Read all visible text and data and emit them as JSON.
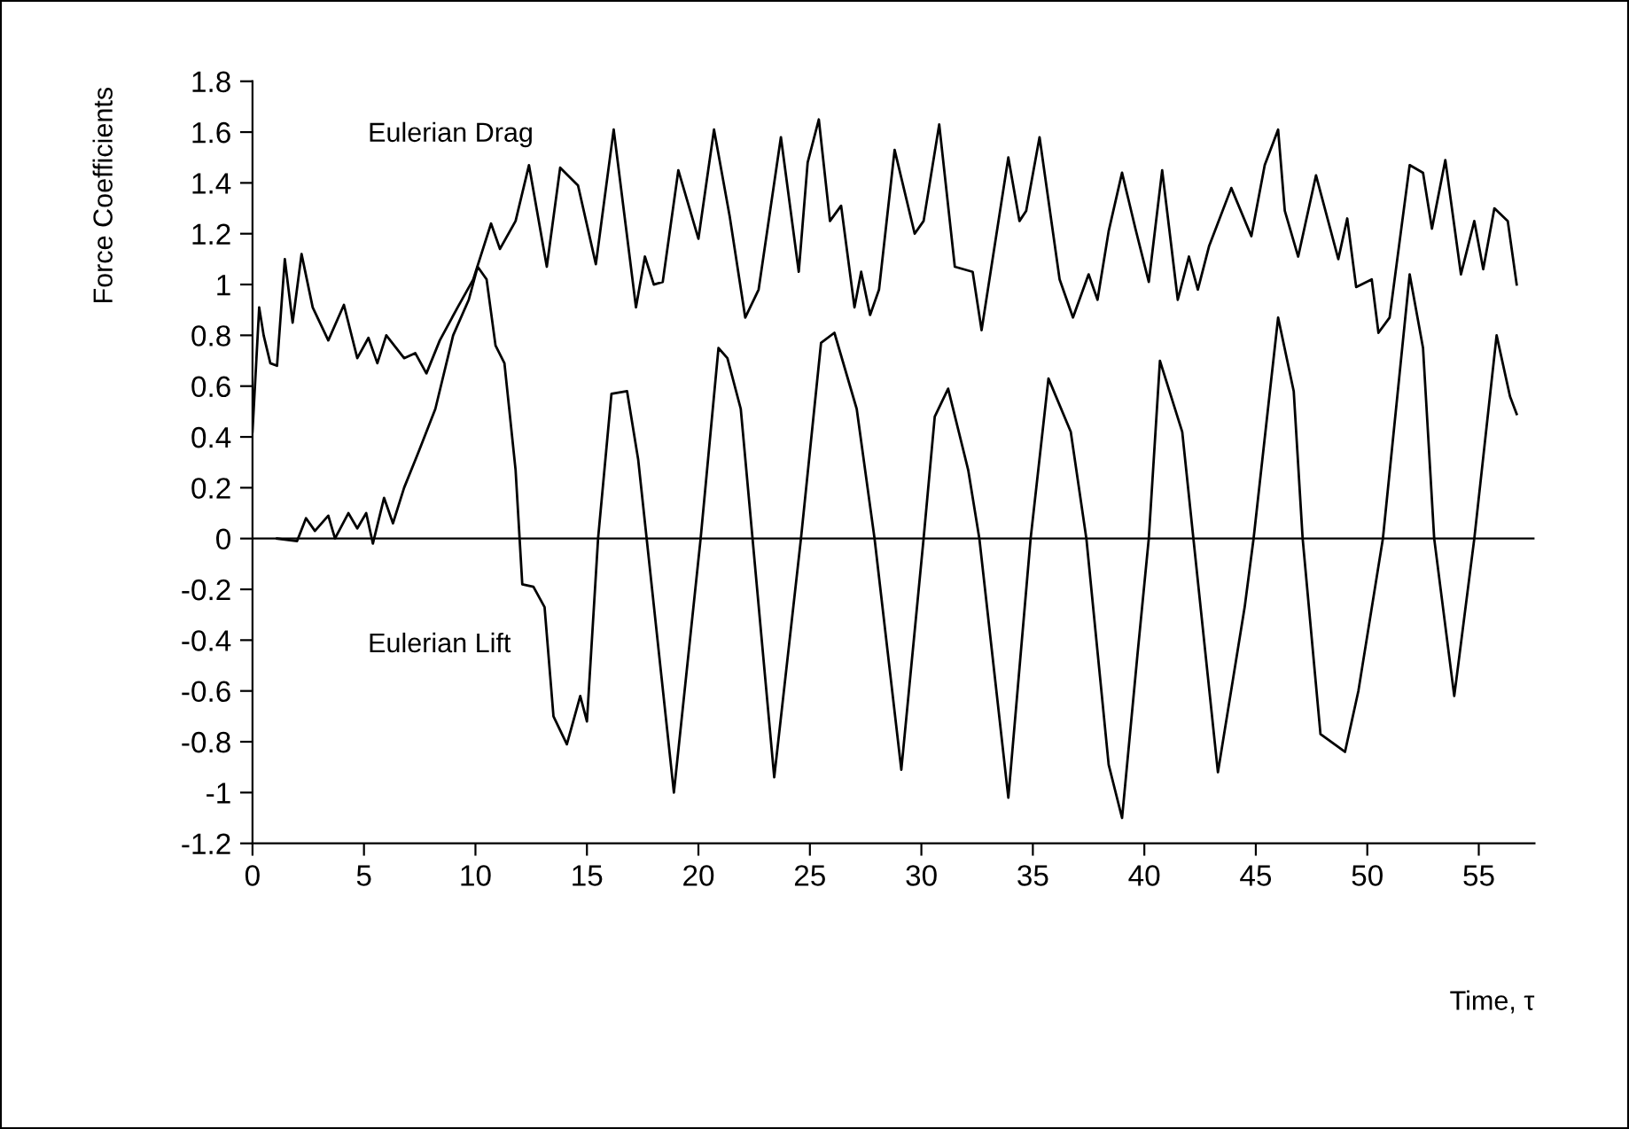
{
  "chart_data": {
    "type": "line",
    "xlabel": "Time, τ",
    "ylabel": "Force Coefficients",
    "xlim": [
      0,
      57.5
    ],
    "ylim": [
      -1.2,
      1.8
    ],
    "xticks": [
      0,
      5,
      10,
      15,
      20,
      25,
      30,
      35,
      40,
      45,
      50,
      55
    ],
    "yticks": [
      -1.2,
      -1,
      -0.8,
      -0.6,
      -0.4,
      -0.2,
      0,
      0.2,
      0.4,
      0.6,
      0.8,
      1,
      1.2,
      1.4,
      1.6,
      1.8
    ],
    "grid": false,
    "legend": false,
    "marker": "none",
    "line_style": "solid",
    "ref_lines": [
      {
        "axis": "y",
        "value": 0,
        "color": "#000000"
      }
    ],
    "series": [
      {
        "name": "Eulerian Drag",
        "color": "#000000",
        "x": [
          0,
          0.3,
          0.5,
          0.8,
          1.1,
          1.45,
          1.8,
          2.2,
          2.7,
          3.4,
          4.1,
          4.7,
          5.2,
          5.6,
          6.0,
          6.8,
          7.3,
          7.8,
          8.4,
          9.2,
          9.9,
          10.7,
          11.1,
          11.8,
          12.4,
          13.2,
          13.8,
          14.6,
          15.4,
          16.2,
          17.2,
          17.6,
          18.0,
          18.4,
          19.1,
          20.0,
          20.7,
          21.4,
          22.1,
          22.7,
          23.7,
          24.5,
          24.9,
          25.4,
          25.9,
          26.4,
          27.0,
          27.3,
          27.7,
          28.1,
          28.8,
          29.7,
          30.1,
          30.8,
          31.5,
          32.3,
          32.7,
          33.9,
          34.4,
          34.7,
          35.3,
          36.2,
          36.8,
          37.5,
          37.9,
          38.4,
          39.0,
          39.6,
          40.2,
          40.8,
          41.5,
          42.0,
          42.4,
          42.9,
          43.9,
          44.8,
          45.4,
          46.0,
          46.3,
          46.9,
          47.7,
          48.7,
          49.1,
          49.5,
          50.2,
          50.5,
          51.0,
          51.9,
          52.5,
          52.9,
          53.5,
          54.2,
          54.8,
          55.2,
          55.7,
          56.3,
          56.7
        ],
        "values": [
          0.42,
          0.91,
          0.8,
          0.69,
          0.68,
          1.1,
          0.85,
          1.12,
          0.91,
          0.78,
          0.92,
          0.71,
          0.79,
          0.69,
          0.8,
          0.71,
          0.73,
          0.65,
          0.78,
          0.91,
          1.02,
          1.24,
          1.14,
          1.25,
          1.47,
          1.07,
          1.46,
          1.39,
          1.08,
          1.61,
          0.91,
          1.11,
          1.0,
          1.01,
          1.45,
          1.18,
          1.61,
          1.27,
          0.87,
          0.98,
          1.58,
          1.05,
          1.48,
          1.65,
          1.25,
          1.31,
          0.91,
          1.05,
          0.88,
          0.98,
          1.53,
          1.2,
          1.25,
          1.63,
          1.07,
          1.05,
          0.82,
          1.5,
          1.25,
          1.29,
          1.58,
          1.02,
          0.87,
          1.04,
          0.94,
          1.21,
          1.44,
          1.22,
          1.01,
          1.45,
          0.94,
          1.11,
          0.98,
          1.15,
          1.38,
          1.19,
          1.47,
          1.61,
          1.29,
          1.11,
          1.43,
          1.1,
          1.26,
          0.99,
          1.02,
          0.81,
          0.87,
          1.47,
          1.44,
          1.22,
          1.49,
          1.04,
          1.25,
          1.06,
          1.3,
          1.25,
          1.0
        ]
      },
      {
        "name": "Eulerian Lift",
        "color": "#000000",
        "x": [
          1.1,
          2.0,
          2.4,
          2.8,
          3.4,
          3.7,
          4.3,
          4.7,
          5.1,
          5.4,
          5.9,
          6.3,
          6.8,
          7.4,
          8.2,
          9.0,
          9.7,
          10.1,
          10.5,
          10.9,
          11.3,
          11.8,
          12.1,
          12.6,
          13.1,
          13.5,
          14.1,
          14.7,
          15.0,
          15.5,
          16.1,
          16.8,
          17.3,
          18.9,
          20.1,
          20.9,
          21.3,
          21.9,
          23.4,
          24.6,
          25.5,
          26.1,
          27.1,
          27.9,
          29.1,
          30.1,
          30.6,
          31.2,
          32.1,
          32.6,
          33.9,
          34.9,
          35.7,
          36.7,
          37.4,
          38.4,
          39.0,
          39.7,
          40.2,
          40.7,
          41.7,
          42.2,
          43.3,
          44.5,
          44.9,
          46.0,
          46.7,
          47.1,
          47.9,
          49.0,
          49.6,
          50.7,
          51.9,
          52.5,
          53.0,
          53.9,
          54.8,
          55.8,
          56.4,
          56.7
        ],
        "values": [
          0,
          -0.01,
          0.08,
          0.03,
          0.09,
          0,
          0.1,
          0.04,
          0.1,
          -0.02,
          0.16,
          0.06,
          0.2,
          0.33,
          0.51,
          0.8,
          0.94,
          1.07,
          1.02,
          0.76,
          0.69,
          0.27,
          -0.18,
          -0.19,
          -0.27,
          -0.7,
          -0.81,
          -0.62,
          -0.72,
          0,
          0.57,
          0.58,
          0.31,
          -1.0,
          0,
          0.75,
          0.71,
          0.51,
          -0.94,
          0,
          0.77,
          0.81,
          0.51,
          0,
          -0.91,
          0,
          0.48,
          0.59,
          0.27,
          0,
          -1.02,
          0,
          0.63,
          0.42,
          0,
          -0.89,
          -1.1,
          -0.45,
          0,
          0.7,
          0.42,
          0,
          -0.92,
          -0.27,
          0,
          0.87,
          0.58,
          0,
          -0.77,
          -0.84,
          -0.6,
          0,
          1.04,
          0.75,
          0,
          -0.62,
          0,
          0.8,
          0.56,
          0.49
        ]
      }
    ]
  }
}
